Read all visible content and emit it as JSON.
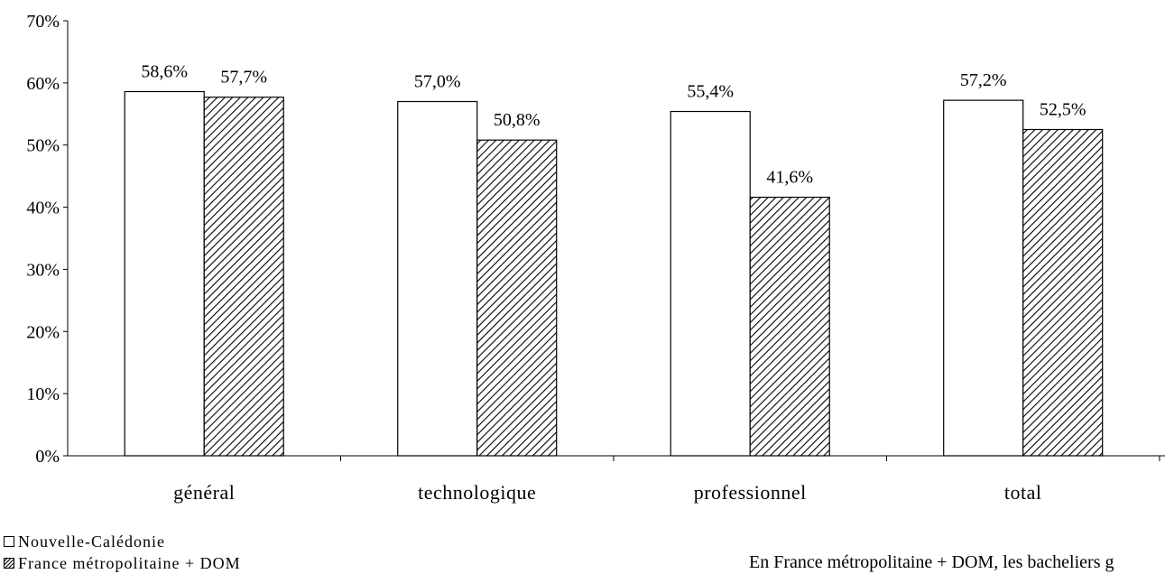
{
  "chart_data": {
    "type": "bar",
    "categories": [
      "général",
      "technologique",
      "professionnel",
      "total"
    ],
    "series": [
      {
        "name": "Nouvelle-Calédonie",
        "values": [
          58.6,
          57.0,
          55.4,
          57.2
        ],
        "labels": [
          "58,6%",
          "57,0%",
          "55,4%",
          "57,2%"
        ],
        "fill": "#ffffff"
      },
      {
        "name": "France métropolitaine + DOM",
        "values": [
          57.7,
          50.8,
          41.6,
          52.5
        ],
        "labels": [
          "57,7%",
          "50,8%",
          "41,6%",
          "52,5%"
        ],
        "fill": "hatch"
      }
    ],
    "yticks": [
      "0%",
      "10%",
      "20%",
      "30%",
      "40%",
      "50%",
      "60%",
      "70%"
    ],
    "ylim": [
      0,
      70
    ],
    "title": "",
    "xlabel": "",
    "ylabel": "",
    "grid": false,
    "legend_position": "bottom-left"
  },
  "note_text": "En France métropolitaine + DOM, les bacheliers g"
}
